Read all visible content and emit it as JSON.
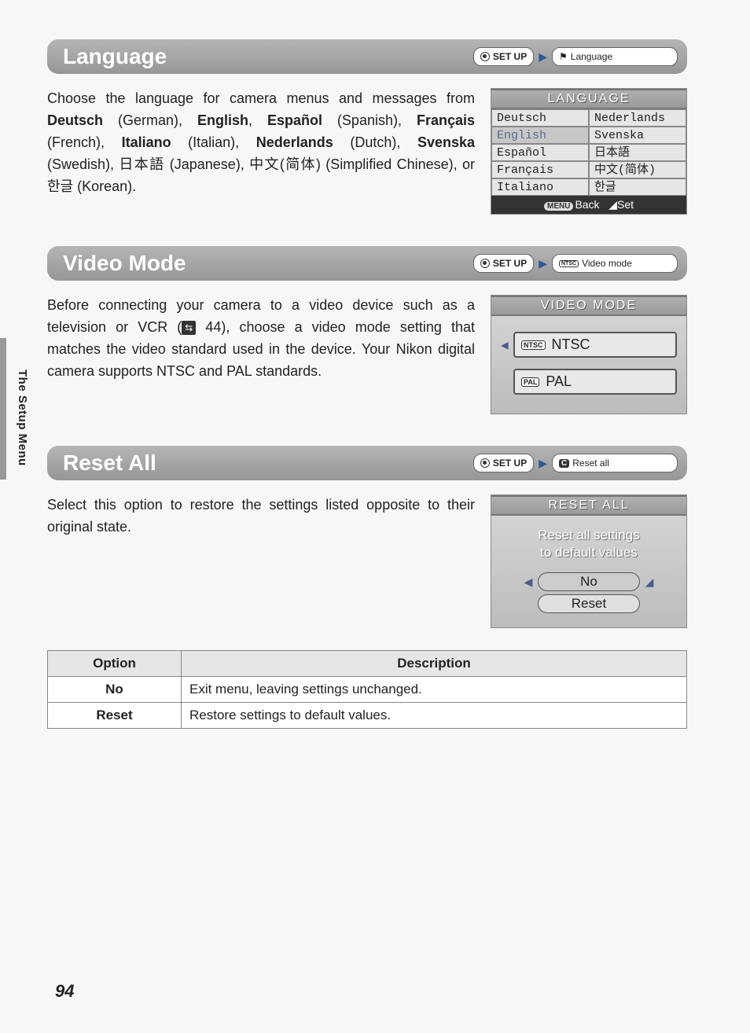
{
  "side_label": "The Setup Menu",
  "page_number": "94",
  "sections": {
    "language": {
      "title": "Language",
      "bc_setup": "SET UP",
      "bc_item": "Language",
      "body_parts": {
        "p1a": "Choose the language for camera menus and messages from ",
        "b1": "Deutsch",
        "p1b": " (German), ",
        "b2": "English",
        "p1c": ", ",
        "b3": "Español",
        "p1d": " (Spanish), ",
        "b4": "Français",
        "p1e": " (French), ",
        "b5": "Italiano",
        "p1f": " (Italian), ",
        "b6": "Nederlands",
        "p1g": " (Dutch), ",
        "b7": "Svenska",
        "p1h": " (Swedish), 日本語 (Japanese), 中文(简体) (Simplified Chinese), or 한글 (Korean)."
      },
      "screen": {
        "title": "LANGUAGE",
        "cells": [
          "Deutsch",
          "Nederlands",
          "English",
          "Svenska",
          "Español",
          "日本語",
          "Français",
          "中文(简体)",
          "Italiano",
          "한글"
        ],
        "selected_index": 2,
        "footer_back": "Back",
        "footer_set": "Set",
        "menu_badge": "MENU"
      }
    },
    "video": {
      "title": "Video Mode",
      "bc_setup": "SET UP",
      "bc_item": "Video mode",
      "bc_tag": "NTSC",
      "body": "Before connecting your camera to a video device such as a television or VCR (",
      "body_ref": "44",
      "body2": "), choose a video mode setting that matches the video standard used in the device. Your Nikon digital camera supports NTSC and PAL standards.",
      "screen": {
        "title": "VIDEO MODE",
        "opt1_tag": "NTSC",
        "opt1": "NTSC",
        "opt2_tag": "PAL",
        "opt2": "PAL"
      }
    },
    "reset": {
      "title": "Reset All",
      "bc_setup": "SET UP",
      "bc_item": "Reset all",
      "bc_icon": "C",
      "body": "Select this option to restore the settings listed opposite to their original state.",
      "screen": {
        "title": "RESET ALL",
        "msg1": "Reset all settings",
        "msg2": "to default values",
        "opt_no": "No",
        "opt_reset": "Reset"
      },
      "table": {
        "h1": "Option",
        "h2": "Description",
        "rows": [
          {
            "opt": "No",
            "desc": "Exit menu, leaving settings unchanged."
          },
          {
            "opt": "Reset",
            "desc": "Restore settings to default values."
          }
        ]
      }
    }
  },
  "colors": {
    "header_grad_top": "#b5b5b5",
    "header_grad_bot": "#969696",
    "screen_bg_top": "#d8d8d8",
    "screen_bg_bot": "#bcbcbc",
    "arrow": "#2a5a9a"
  }
}
